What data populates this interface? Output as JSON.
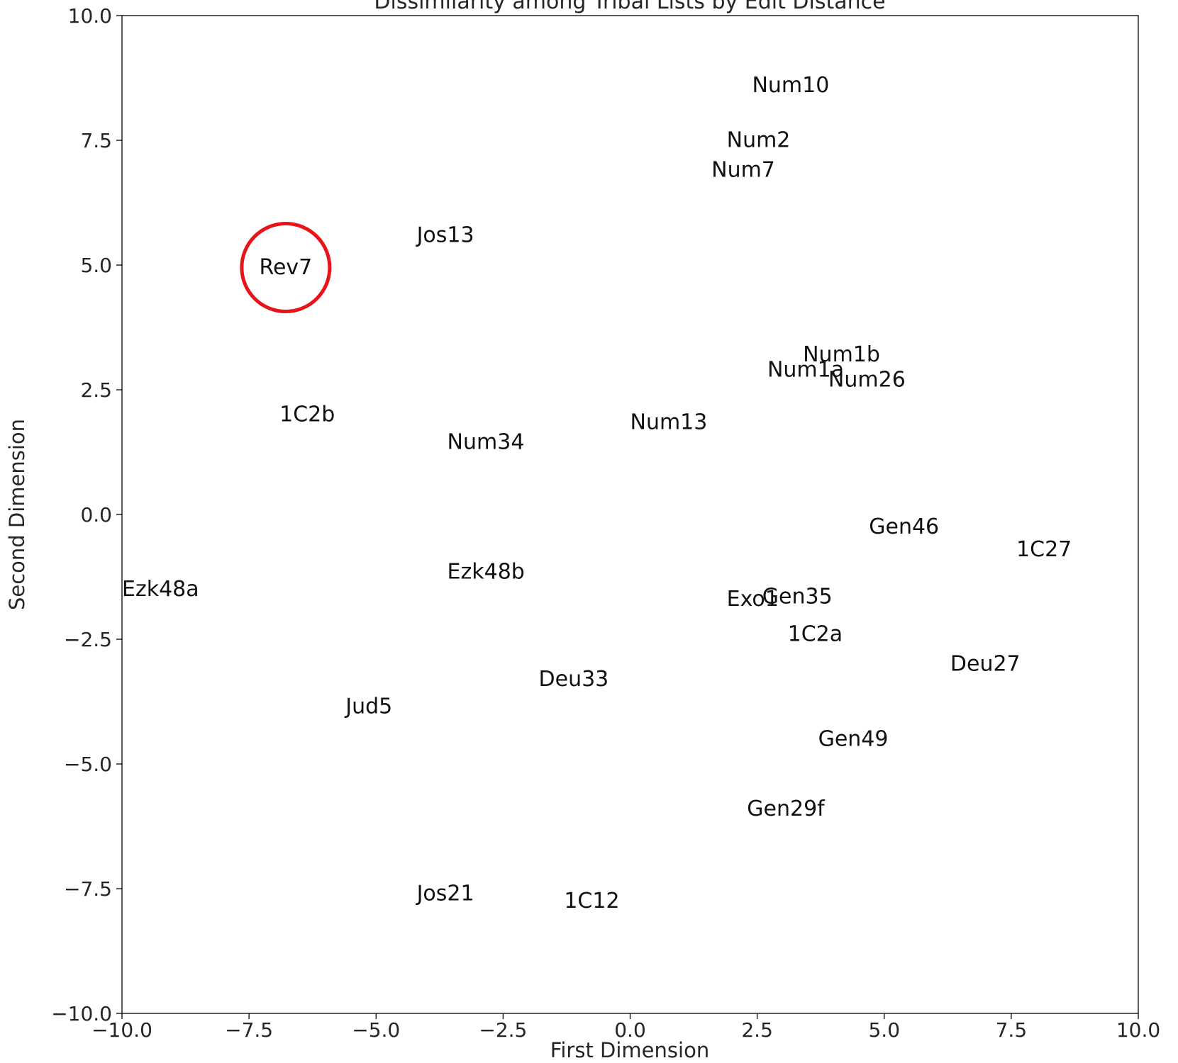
{
  "chart_data": {
    "type": "scatter",
    "title": "Dissimilarity among Tribal Lists by Edit Distance",
    "xlabel": "First Dimension",
    "ylabel": "Second Dimension",
    "xlim": [
      -10.0,
      10.0
    ],
    "ylim": [
      -10.0,
      10.0
    ],
    "xticks": [
      -10.0,
      -7.5,
      -5.0,
      -2.5,
      0.0,
      2.5,
      5.0,
      7.5,
      10.0
    ],
    "yticks": [
      -10.0,
      -7.5,
      -5.0,
      -2.5,
      0.0,
      2.5,
      5.0,
      7.5,
      10.0
    ],
    "grid": false,
    "marker": "text labels only",
    "points": [
      {
        "label": "Num10",
        "x": 2.4,
        "y": 8.6
      },
      {
        "label": "Num2",
        "x": 1.9,
        "y": 7.5
      },
      {
        "label": "Num7",
        "x": 1.6,
        "y": 6.9
      },
      {
        "label": "Jos13",
        "x": -4.2,
        "y": 5.6
      },
      {
        "label": "Rev7",
        "x": -7.3,
        "y": 4.95
      },
      {
        "label": "Num1b",
        "x": 3.4,
        "y": 3.2
      },
      {
        "label": "Num1a",
        "x": 2.7,
        "y": 2.9
      },
      {
        "label": "Num26",
        "x": 3.9,
        "y": 2.7
      },
      {
        "label": "1C2b",
        "x": -6.9,
        "y": 2.0
      },
      {
        "label": "Num13",
        "x": 0.0,
        "y": 1.85
      },
      {
        "label": "Num34",
        "x": -3.6,
        "y": 1.45
      },
      {
        "label": "Gen46",
        "x": 4.7,
        "y": -0.25
      },
      {
        "label": "1C27",
        "x": 7.6,
        "y": -0.7
      },
      {
        "label": "Ezk48b",
        "x": -3.6,
        "y": -1.15
      },
      {
        "label": "Ezk48a",
        "x": -10.0,
        "y": -1.5
      },
      {
        "label": "Exo1",
        "x": 1.9,
        "y": -1.7
      },
      {
        "label": "Gen35",
        "x": 2.6,
        "y": -1.65
      },
      {
        "label": "1C2a",
        "x": 3.1,
        "y": -2.4
      },
      {
        "label": "Deu27",
        "x": 6.3,
        "y": -3.0
      },
      {
        "label": "Deu33",
        "x": -1.8,
        "y": -3.3
      },
      {
        "label": "Jud5",
        "x": -5.6,
        "y": -3.85
      },
      {
        "label": "Gen49",
        "x": 3.7,
        "y": -4.5
      },
      {
        "label": "Gen29f",
        "x": 2.3,
        "y": -5.9
      },
      {
        "label": "Jos21",
        "x": -4.2,
        "y": -7.6
      },
      {
        "label": "1C12",
        "x": -1.3,
        "y": -7.75
      }
    ],
    "highlight": {
      "label": "Rev7",
      "shape": "circle",
      "color": "#e8141b"
    },
    "colors": {
      "text": "#111111",
      "axes": "#000000"
    }
  }
}
